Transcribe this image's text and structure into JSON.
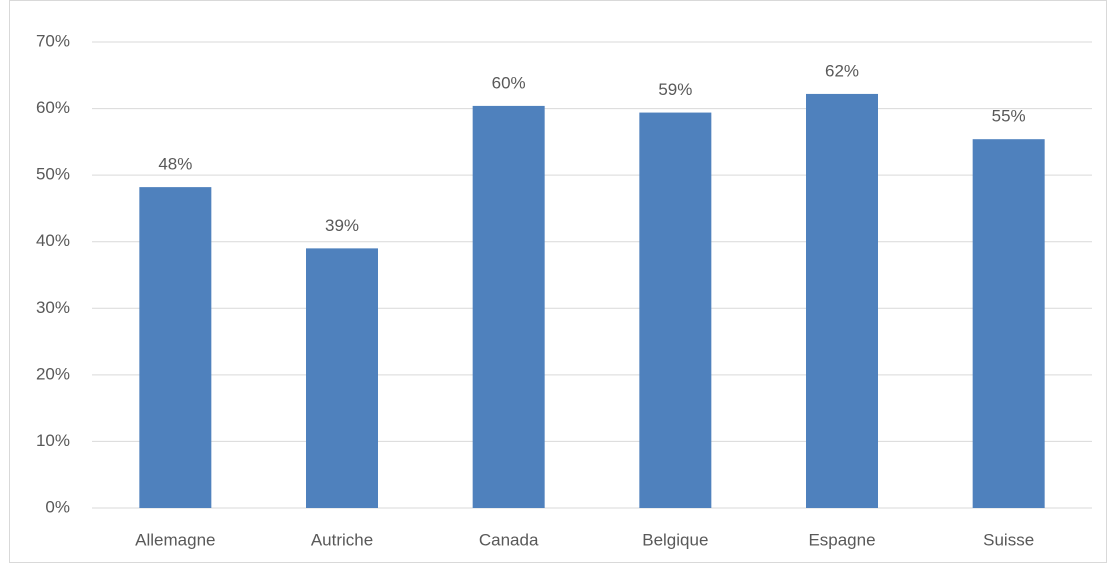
{
  "chart_data": {
    "type": "bar",
    "categories": [
      "Allemagne",
      "Autriche",
      "Canada",
      "Belgique",
      "Espagne",
      "Suisse"
    ],
    "values": [
      48.2,
      39,
      60.4,
      59.4,
      62.2,
      55.4
    ],
    "value_labels": [
      "48%",
      "39%",
      "60%",
      "59%",
      "62%",
      "55%"
    ],
    "color": "#4f81bd",
    "ylim": [
      0,
      70
    ],
    "yticks": [
      {
        "value": 0,
        "label": "0%"
      },
      {
        "value": 10,
        "label": "10%"
      },
      {
        "value": 20,
        "label": "20%"
      },
      {
        "value": 30,
        "label": "30%"
      },
      {
        "value": 40,
        "label": "40%"
      },
      {
        "value": 50,
        "label": "50%"
      },
      {
        "value": 60,
        "label": "60%"
      },
      {
        "value": 70,
        "label": "70%"
      }
    ],
    "grid": true
  }
}
